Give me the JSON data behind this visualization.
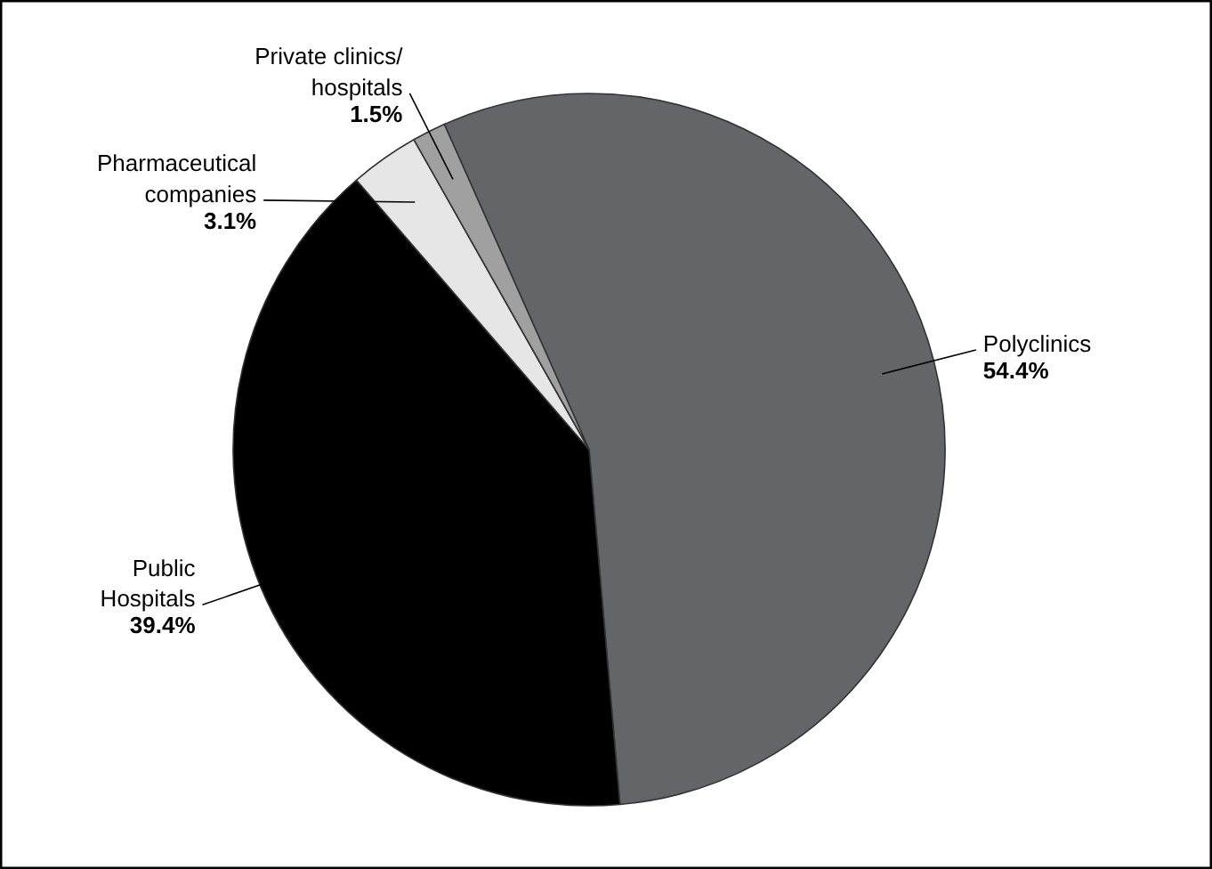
{
  "chart_data": {
    "type": "pie",
    "categories": [
      "Polyclinics",
      "Public\nHospitals",
      "Pharmaceutical\ncompanies",
      "Private clinics/\nhospitals"
    ],
    "values": [
      54.4,
      39.4,
      3.1,
      1.5
    ],
    "colors": [
      "#646569",
      "#000000",
      "#e6e6e6",
      "#a0a0a0"
    ],
    "value_labels": [
      "54.4%",
      "39.4%",
      "3.1%",
      "1.5%"
    ]
  }
}
